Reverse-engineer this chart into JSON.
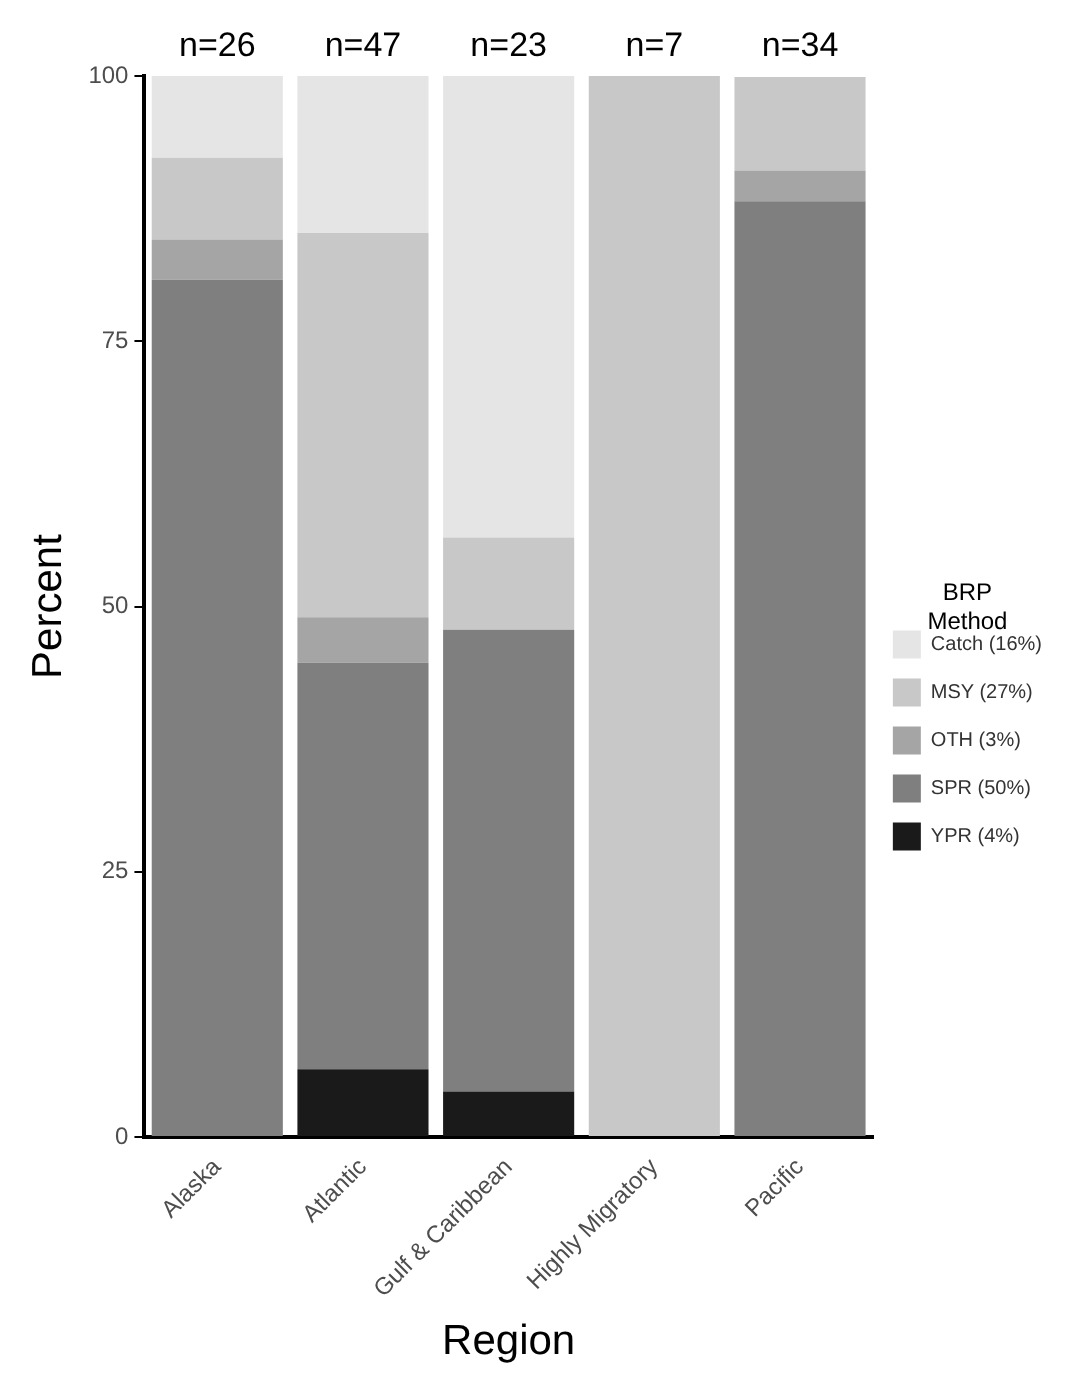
{
  "chart_data": {
    "type": "bar",
    "stacked": true,
    "xlabel": "Region",
    "ylabel": "Percent",
    "legend_title": "BRP Method",
    "legend": "right",
    "categories": [
      "Alaska",
      "Atlantic",
      "Gulf & Caribbean",
      "Highly Migratory",
      "Pacific"
    ],
    "series": [
      {
        "name": "YPR (4%)",
        "color": "#1a1a1a",
        "values": [
          0,
          6.4,
          4.3,
          0,
          0
        ]
      },
      {
        "name": "SPR (50%)",
        "color": "#7f7f7f",
        "values": [
          80.8,
          38.3,
          43.5,
          0,
          88.2
        ]
      },
      {
        "name": "OTH (3%)",
        "color": "#a5a5a5",
        "values": [
          3.8,
          4.3,
          0,
          0,
          2.9
        ]
      },
      {
        "name": "MSY (27%)",
        "color": "#c8c8c8",
        "values": [
          7.7,
          36.2,
          8.7,
          100,
          8.8
        ]
      },
      {
        "name": "Catch (16%)",
        "color": "#e5e5e5",
        "values": [
          7.7,
          14.9,
          43.5,
          0,
          0
        ]
      }
    ],
    "ylim": [
      0,
      100
    ],
    "yticks": [
      0,
      25,
      50,
      75,
      100
    ],
    "grid": false,
    "annotations": [
      {
        "text": "n=26",
        "x": "Alaska",
        "y": 100
      },
      {
        "text": "n=47",
        "x": "Atlantic",
        "y": 100
      },
      {
        "text": "n=23",
        "x": "Gulf & Caribbean",
        "y": 100
      },
      {
        "text": "n=7",
        "x": "Highly Migratory",
        "y": 100
      },
      {
        "text": "n=34",
        "x": "Pacific",
        "y": 100
      }
    ]
  }
}
